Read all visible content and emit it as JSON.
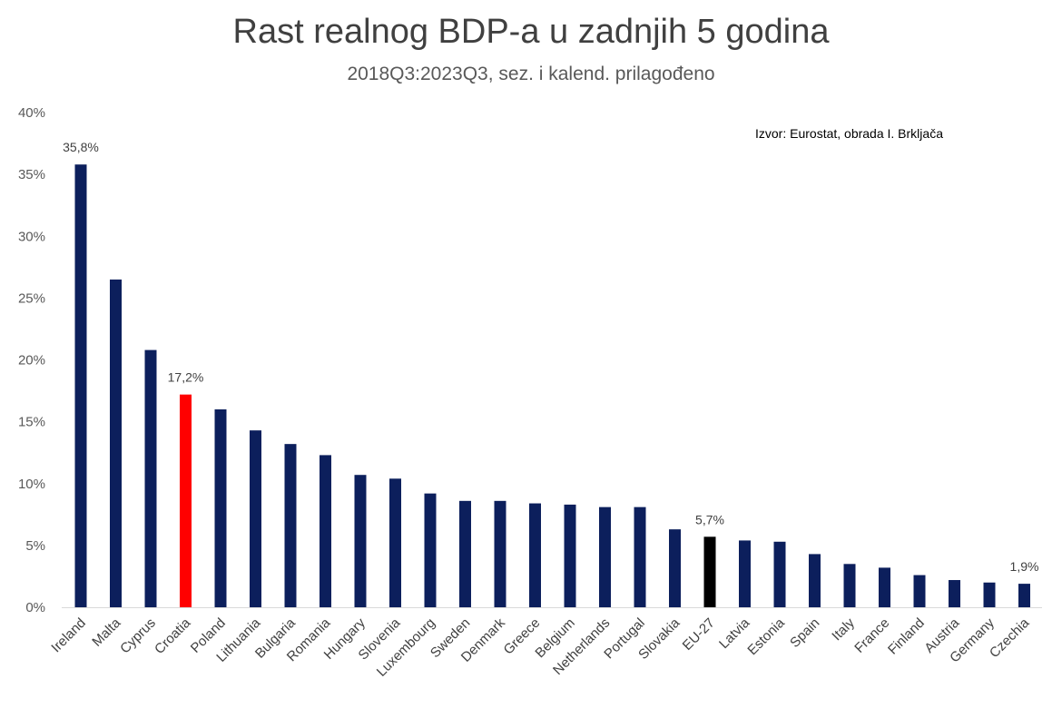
{
  "chart_data": {
    "type": "bar",
    "title": "Rast realnog BDP-a u zadnjih 5 godina",
    "subtitle": "2018Q3:2023Q3, sez. i kalend. prilagođeno",
    "source": "Izvor: Eurostat, obrada I. Brkljača",
    "ylim": [
      0,
      40
    ],
    "yticks": [
      "0%",
      "5%",
      "10%",
      "15%",
      "20%",
      "25%",
      "30%",
      "35%",
      "40%"
    ],
    "grid": false,
    "categories": [
      "Ireland",
      "Malta",
      "Cyprus",
      "Croatia",
      "Poland",
      "Lithuania",
      "Bulgaria",
      "Romania",
      "Hungary",
      "Slovenia",
      "Luxembourg",
      "Sweden",
      "Denmark",
      "Greece",
      "Belgium",
      "Netherlands",
      "Portugal",
      "Slovakia",
      "EU-27",
      "Latvia",
      "Estonia",
      "Spain",
      "Italy",
      "France",
      "Finland",
      "Austria",
      "Germany",
      "Czechia"
    ],
    "values": [
      35.8,
      26.5,
      20.8,
      17.2,
      16.0,
      14.3,
      13.2,
      12.3,
      10.7,
      10.4,
      9.2,
      8.6,
      8.6,
      8.4,
      8.3,
      8.1,
      8.1,
      6.3,
      5.7,
      5.4,
      5.3,
      4.3,
      3.5,
      3.2,
      2.6,
      2.2,
      2.0,
      1.9
    ],
    "data_labels": {
      "0": "35,8%",
      "3": "17,2%",
      "18": "5,7%",
      "27": "1,9%"
    },
    "colors": {
      "default": "#0c1f5c",
      "highlight": "#ff0000",
      "aggregate": "#000000"
    },
    "highlight_index": 3,
    "aggregate_index": 18
  }
}
